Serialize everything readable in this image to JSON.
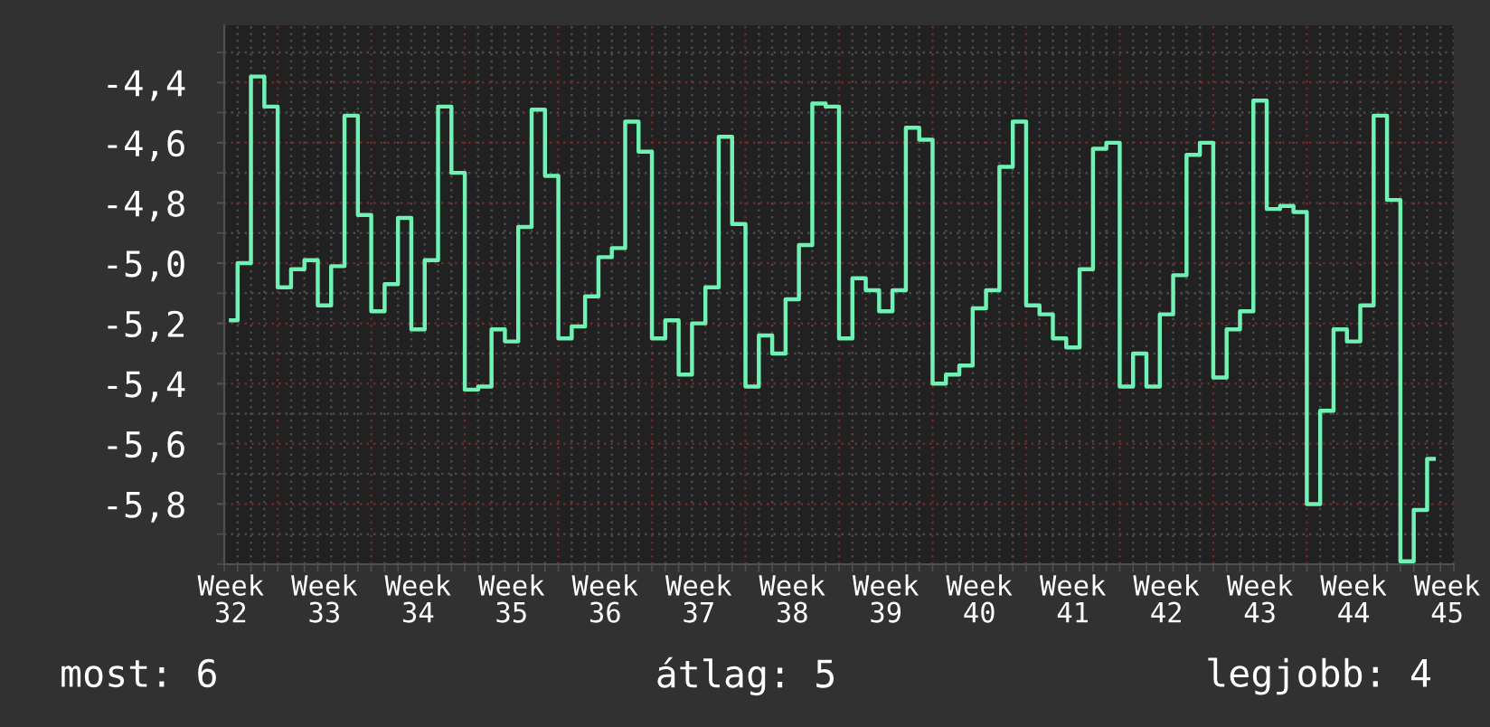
{
  "chart_data": {
    "type": "step",
    "categories": [
      "Week 32",
      null,
      null,
      null,
      null,
      null,
      null,
      "Week 33",
      null,
      null,
      null,
      null,
      null,
      null,
      "Week 34",
      null,
      null,
      null,
      null,
      null,
      null,
      "Week 35",
      null,
      null,
      null,
      null,
      null,
      null,
      "Week 36",
      null,
      null,
      null,
      null,
      null,
      null,
      "Week 37",
      null,
      null,
      null,
      null,
      null,
      null,
      "Week 38",
      null,
      null,
      null,
      null,
      null,
      null,
      "Week 39",
      null,
      null,
      null,
      null,
      null,
      null,
      "Week 40",
      null,
      null,
      null,
      null,
      null,
      null,
      "Week 41",
      null,
      null,
      null,
      null,
      null,
      null,
      "Week 42",
      null,
      null,
      null,
      null,
      null,
      null,
      "Week 43",
      null,
      null,
      null,
      null,
      null,
      null,
      "Week 44",
      null,
      null,
      null,
      null,
      null,
      null,
      "Week 45"
    ],
    "series": [
      {
        "color": "#6ff2b4",
        "values": [
          -5.19,
          -5.0,
          -4.38,
          -4.48,
          -5.08,
          -5.02,
          -4.99,
          -5.14,
          -5.01,
          -4.51,
          -4.84,
          -5.16,
          -5.07,
          -4.85,
          -5.22,
          -4.99,
          -4.48,
          -4.7,
          -5.42,
          -5.41,
          -5.22,
          -5.26,
          -4.88,
          -4.49,
          -4.71,
          -5.25,
          -5.21,
          -5.11,
          -4.98,
          -4.95,
          -4.53,
          -4.63,
          -5.25,
          -5.19,
          -5.37,
          -5.2,
          -5.08,
          -4.58,
          -4.87,
          -5.41,
          -5.24,
          -5.3,
          -5.12,
          -4.94,
          -4.47,
          -4.48,
          -5.25,
          -5.05,
          -5.09,
          -5.16,
          -5.09,
          -4.55,
          -4.59,
          -5.4,
          -5.37,
          -5.34,
          -5.15,
          -5.09,
          -4.68,
          -4.53,
          -5.14,
          -5.17,
          -5.25,
          -5.28,
          -5.02,
          -4.62,
          -4.6,
          -5.41,
          -5.3,
          -5.41,
          -5.17,
          -5.04,
          -4.64,
          -4.6,
          -5.38,
          -5.22,
          -5.16,
          -4.46,
          -4.82,
          -4.81,
          -4.83,
          -5.8,
          -5.49,
          -5.22,
          -5.26,
          -5.14,
          -4.51,
          -4.79,
          -5.99,
          -5.82,
          -5.65,
          null
        ]
      }
    ],
    "ylim": [
      -6.0,
      -4.21
    ],
    "yticks": [
      {
        "value": -4.4,
        "label": "-4,4"
      },
      {
        "value": -4.6,
        "label": "-4,6"
      },
      {
        "value": -4.8,
        "label": "-4,8"
      },
      {
        "value": -5.0,
        "label": "-5,0"
      },
      {
        "value": -5.2,
        "label": "-5,2"
      },
      {
        "value": -5.4,
        "label": "-5,4"
      },
      {
        "value": -5.6,
        "label": "-5,6"
      },
      {
        "value": -5.8,
        "label": "-5,8"
      }
    ],
    "grid": true,
    "annotations": [
      "most: 6",
      "átlag: 5",
      "legjobb: 4"
    ]
  }
}
